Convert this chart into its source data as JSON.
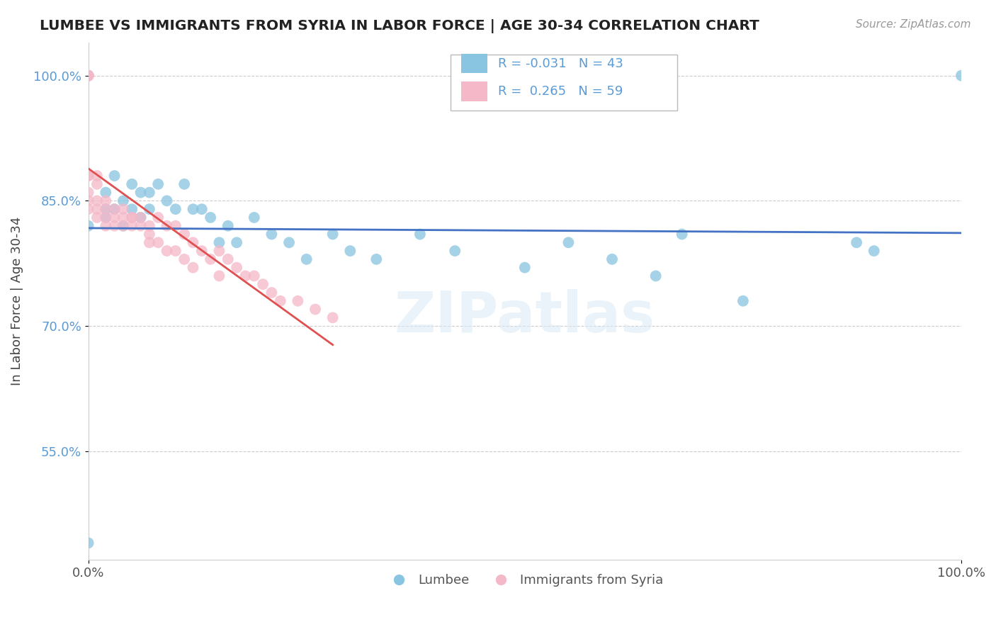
{
  "title": "LUMBEE VS IMMIGRANTS FROM SYRIA IN LABOR FORCE | AGE 30-34 CORRELATION CHART",
  "source_text": "Source: ZipAtlas.com",
  "ylabel": "In Labor Force | Age 30-34",
  "xlim": [
    0.0,
    1.0
  ],
  "ylim": [
    0.42,
    1.04
  ],
  "y_tick_values": [
    0.55,
    0.7,
    0.85,
    1.0
  ],
  "y_tick_labels": [
    "55.0%",
    "70.0%",
    "85.0%",
    "100.0%"
  ],
  "x_tick_values": [
    0.0,
    1.0
  ],
  "x_tick_labels": [
    "0.0%",
    "100.0%"
  ],
  "legend_R_lumbee": "-0.031",
  "legend_N_lumbee": "43",
  "legend_R_syria": "0.265",
  "legend_N_syria": "59",
  "lumbee_color": "#89c4e1",
  "syria_color": "#f4b8c8",
  "trendline_lumbee_color": "#4472c4",
  "trendline_syria_color": "#e05050",
  "background_color": "#ffffff",
  "grid_color": "#cccccc",
  "watermark": "ZIPatlas",
  "lumbee_x": [
    0.0,
    0.0,
    0.02,
    0.02,
    0.02,
    0.03,
    0.03,
    0.04,
    0.04,
    0.05,
    0.05,
    0.06,
    0.06,
    0.07,
    0.07,
    0.08,
    0.09,
    0.1,
    0.11,
    0.12,
    0.13,
    0.14,
    0.15,
    0.16,
    0.17,
    0.19,
    0.21,
    0.23,
    0.25,
    0.28,
    0.3,
    0.33,
    0.38,
    0.42,
    0.5,
    0.55,
    0.6,
    0.65,
    0.68,
    0.75,
    0.88,
    0.9,
    1.0
  ],
  "lumbee_y": [
    0.44,
    0.82,
    0.84,
    0.86,
    0.83,
    0.84,
    0.88,
    0.85,
    0.82,
    0.87,
    0.84,
    0.86,
    0.83,
    0.86,
    0.84,
    0.87,
    0.85,
    0.84,
    0.87,
    0.84,
    0.84,
    0.83,
    0.8,
    0.82,
    0.8,
    0.83,
    0.81,
    0.8,
    0.78,
    0.81,
    0.79,
    0.78,
    0.81,
    0.79,
    0.77,
    0.8,
    0.78,
    0.76,
    0.81,
    0.73,
    0.8,
    0.79,
    1.0
  ],
  "syria_x": [
    0.0,
    0.0,
    0.0,
    0.0,
    0.0,
    0.0,
    0.0,
    0.0,
    0.0,
    0.0,
    0.0,
    0.0,
    0.01,
    0.01,
    0.01,
    0.01,
    0.01,
    0.02,
    0.02,
    0.02,
    0.02,
    0.03,
    0.03,
    0.03,
    0.04,
    0.04,
    0.04,
    0.05,
    0.05,
    0.05,
    0.06,
    0.06,
    0.07,
    0.07,
    0.07,
    0.08,
    0.08,
    0.09,
    0.09,
    0.1,
    0.1,
    0.11,
    0.11,
    0.12,
    0.12,
    0.13,
    0.14,
    0.15,
    0.15,
    0.16,
    0.17,
    0.18,
    0.19,
    0.2,
    0.21,
    0.22,
    0.24,
    0.26,
    0.28
  ],
  "syria_y": [
    1.0,
    1.0,
    1.0,
    1.0,
    1.0,
    1.0,
    1.0,
    0.88,
    0.88,
    0.86,
    0.85,
    0.84,
    0.88,
    0.87,
    0.85,
    0.84,
    0.83,
    0.85,
    0.84,
    0.83,
    0.82,
    0.84,
    0.83,
    0.82,
    0.84,
    0.83,
    0.82,
    0.83,
    0.83,
    0.82,
    0.83,
    0.82,
    0.82,
    0.81,
    0.8,
    0.83,
    0.8,
    0.82,
    0.79,
    0.82,
    0.79,
    0.81,
    0.78,
    0.8,
    0.77,
    0.79,
    0.78,
    0.79,
    0.76,
    0.78,
    0.77,
    0.76,
    0.76,
    0.75,
    0.74,
    0.73,
    0.73,
    0.72,
    0.71
  ]
}
